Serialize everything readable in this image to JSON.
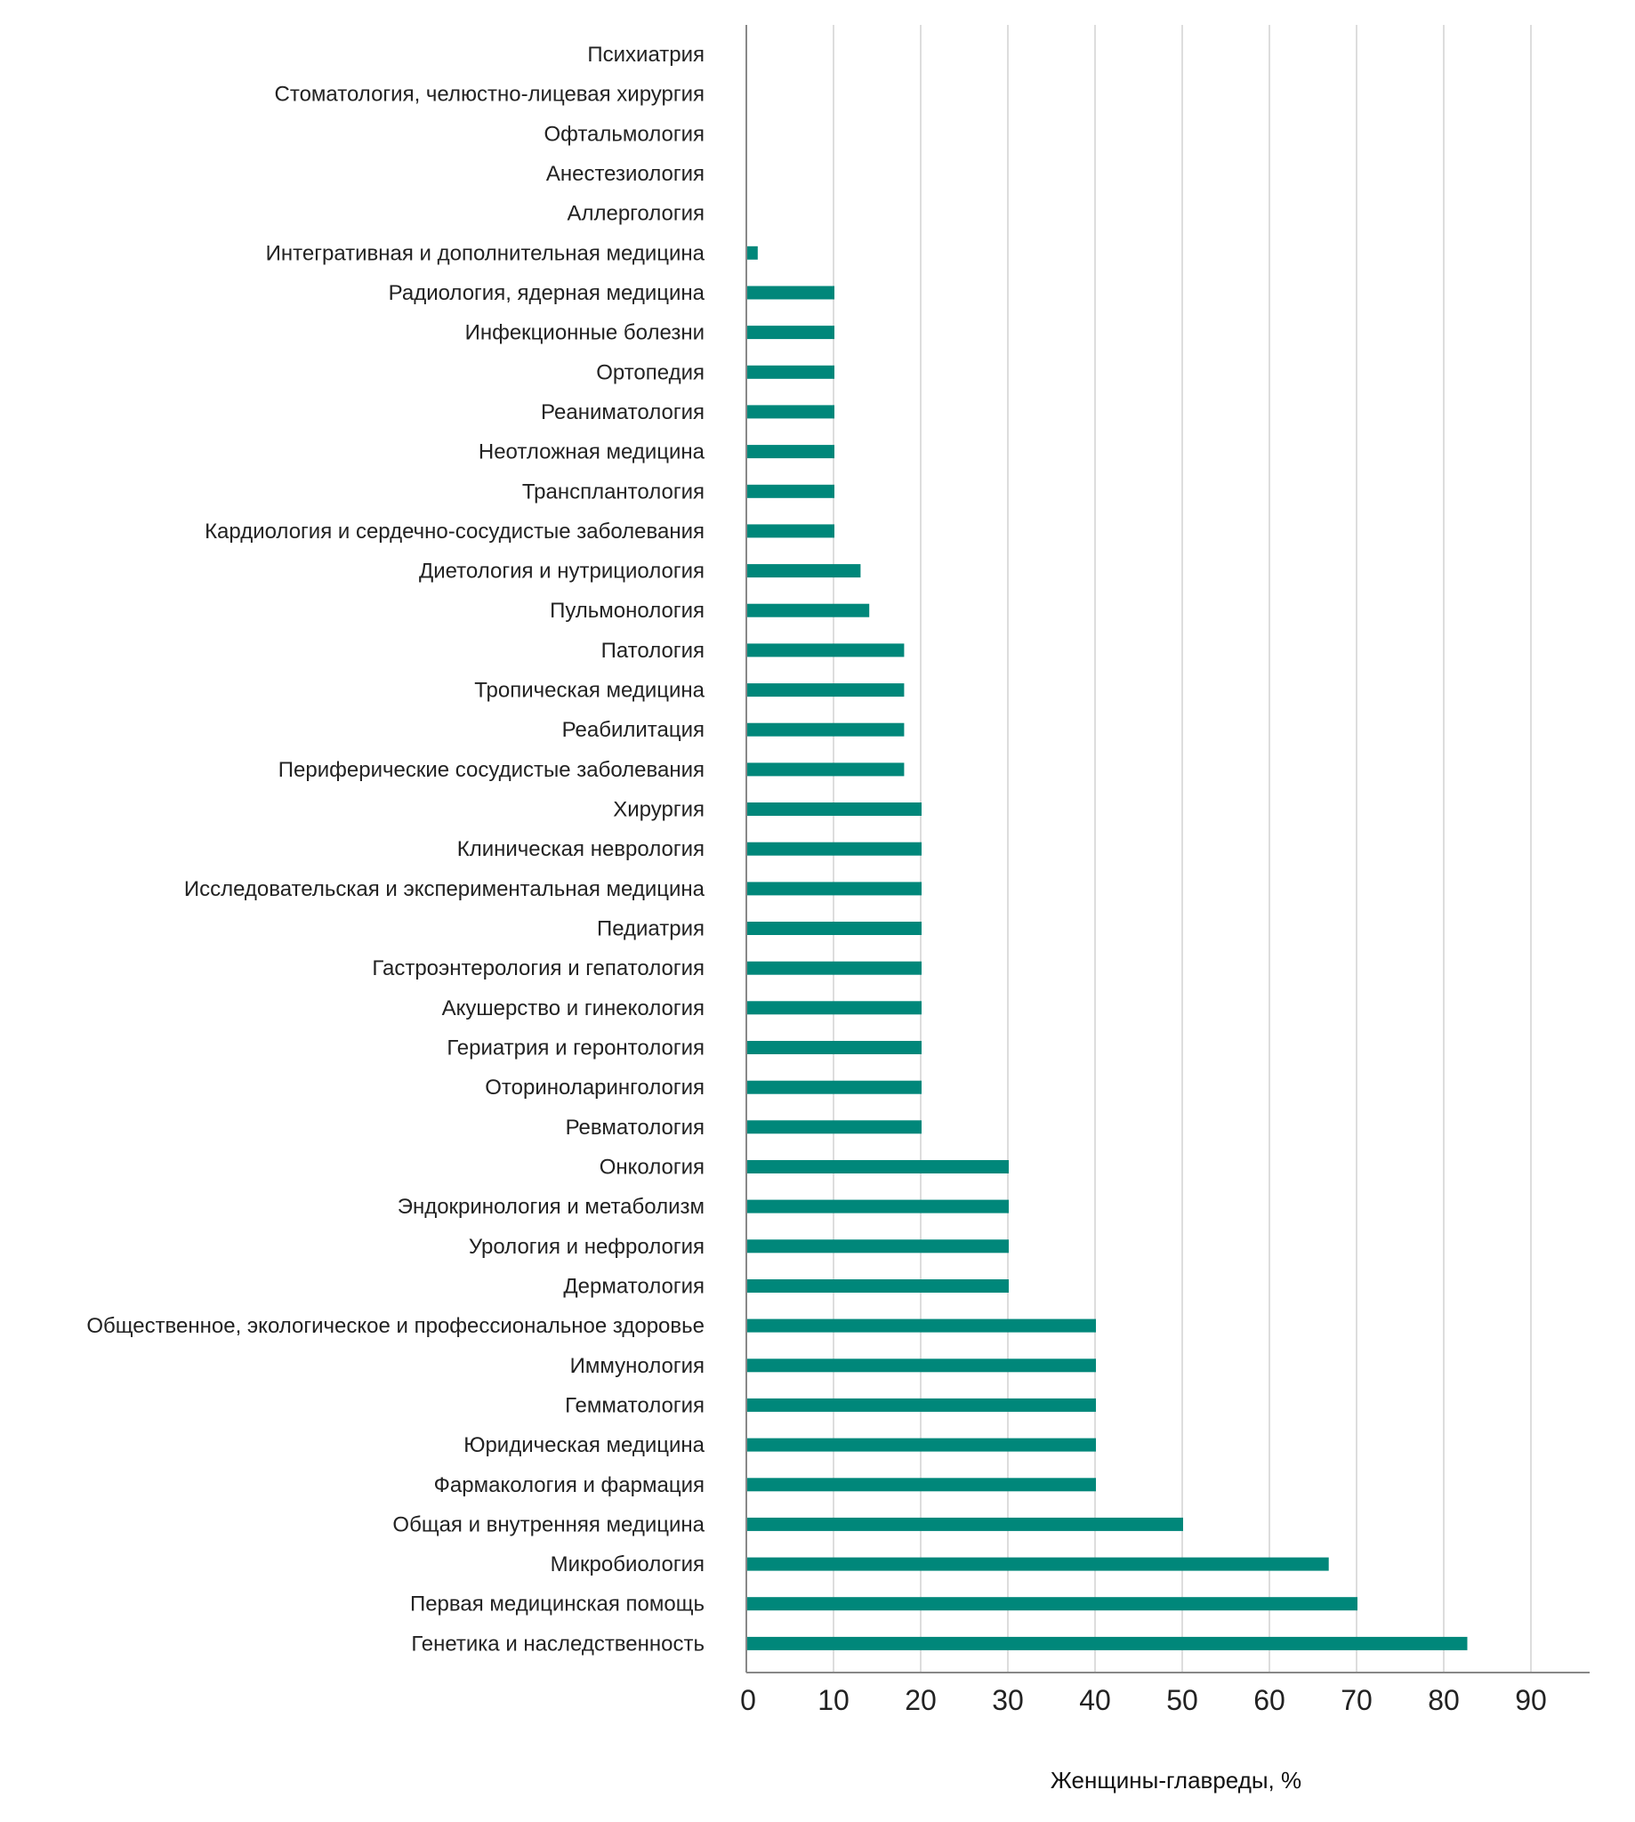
{
  "chart_data": {
    "type": "bar",
    "orientation": "horizontal",
    "xlabel": "Женщины-главреды, %",
    "xlim": [
      0,
      97
    ],
    "xticks": [
      0,
      10,
      20,
      30,
      40,
      50,
      60,
      70,
      80,
      90
    ],
    "grid": "vertical",
    "bar_color": "#00877A",
    "gridline_color": "#DDDDDD",
    "axis_color": "#888888",
    "categories": [
      "Психиатрия",
      "Стоматология, челюстно-лицевая хирургия",
      "Офтальмология",
      "Анестезиология",
      "Аллергология",
      "Интегративная и дополнительная медицина",
      "Радиология, ядерная медицина",
      "Инфекционные болезни",
      "Ортопедия",
      "Реаниматология",
      "Неотложная медицина",
      "Трансплантология",
      "Кардиология и сердечно-сосудистые заболевания",
      "Диетология и нутрициология",
      "Пульмонология",
      "Патология",
      "Тропическая медицина",
      "Реабилитация",
      "Периферические сосудистые заболевания",
      "Хирургия",
      "Клиническая неврология",
      "Исследовательская и экспериментальная медицина",
      "Педиатрия",
      "Гастроэнтерология и гепатология",
      "Акушерство и гинекология",
      "Гериатрия и геронтология",
      "Оториноларингология",
      "Ревматология",
      "Онкология",
      "Эндокринология и метаболизм",
      "Урология и нефрология",
      "Дерматология",
      "Общественное, экологическое и профессиональное здоровье",
      "Иммунология",
      "Гемматология",
      "Юридическая медицина",
      "Фармакология и фармация",
      "Общая и внутренняя медицина",
      "Микробиология",
      "Первая медицинская помощь",
      "Генетика и наследственность"
    ],
    "values": [
      0,
      0,
      0,
      0,
      0,
      1.2,
      10,
      10,
      10,
      10,
      10,
      10,
      10,
      13,
      14,
      18,
      18,
      18,
      18,
      20,
      20,
      20,
      20,
      20,
      20,
      20,
      20,
      20,
      30,
      30,
      30,
      30,
      40,
      40,
      40,
      40,
      40,
      50,
      66.7,
      70,
      82.6
    ]
  }
}
